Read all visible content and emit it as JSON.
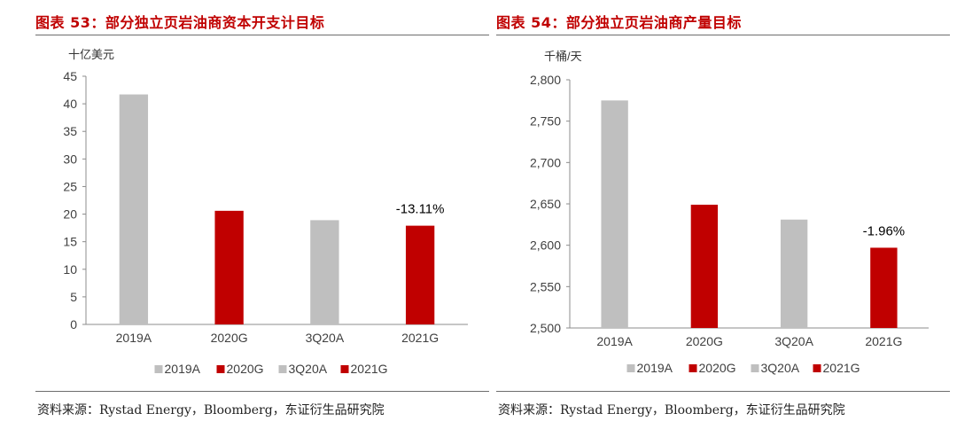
{
  "charts": [
    {
      "title": "图表 53：部分独立页岩油商资本开支计目标",
      "source": "资料来源：Rystad Energy，Bloomberg，东证衍生品研究院",
      "chart_data": {
        "type": "bar",
        "unit": "十亿美元",
        "categories": [
          "2019A",
          "2020G",
          "3Q20A",
          "2021G"
        ],
        "values": [
          41.7,
          20.6,
          18.9,
          17.9
        ],
        "colors": [
          "#bfbfbf",
          "#c00000",
          "#bfbfbf",
          "#c00000"
        ],
        "ylim": [
          0,
          45
        ],
        "yticks": [
          "0",
          "5",
          "10",
          "15",
          "20",
          "25",
          "30",
          "35",
          "40",
          "45"
        ],
        "annotation": {
          "text": "-13.11%",
          "category": "2021G"
        },
        "legend": {
          "position": "bottom",
          "entries": [
            "2019A",
            "2020G",
            "3Q20A",
            "2021G"
          ]
        },
        "grid": false
      }
    },
    {
      "title": "图表 54：部分独立页岩油商产量目标",
      "source": "资料来源：Rystad Energy，Bloomberg，东证衍生品研究院",
      "chart_data": {
        "type": "bar",
        "unit": "千桶/天",
        "categories": [
          "2019A",
          "2020G",
          "3Q20A",
          "2021G"
        ],
        "values": [
          2775,
          2649,
          2631,
          2597
        ],
        "colors": [
          "#bfbfbf",
          "#c00000",
          "#bfbfbf",
          "#c00000"
        ],
        "ylim": [
          2500,
          2800
        ],
        "yticks": [
          "2,500",
          "2,550",
          "2,600",
          "2,650",
          "2,700",
          "2,750",
          "2,800"
        ],
        "annotation": {
          "text": "-1.96%",
          "category": "2021G"
        },
        "legend": {
          "position": "bottom",
          "entries": [
            "2019A",
            "2020G",
            "3Q20A",
            "2021G"
          ]
        },
        "grid": false
      }
    }
  ]
}
